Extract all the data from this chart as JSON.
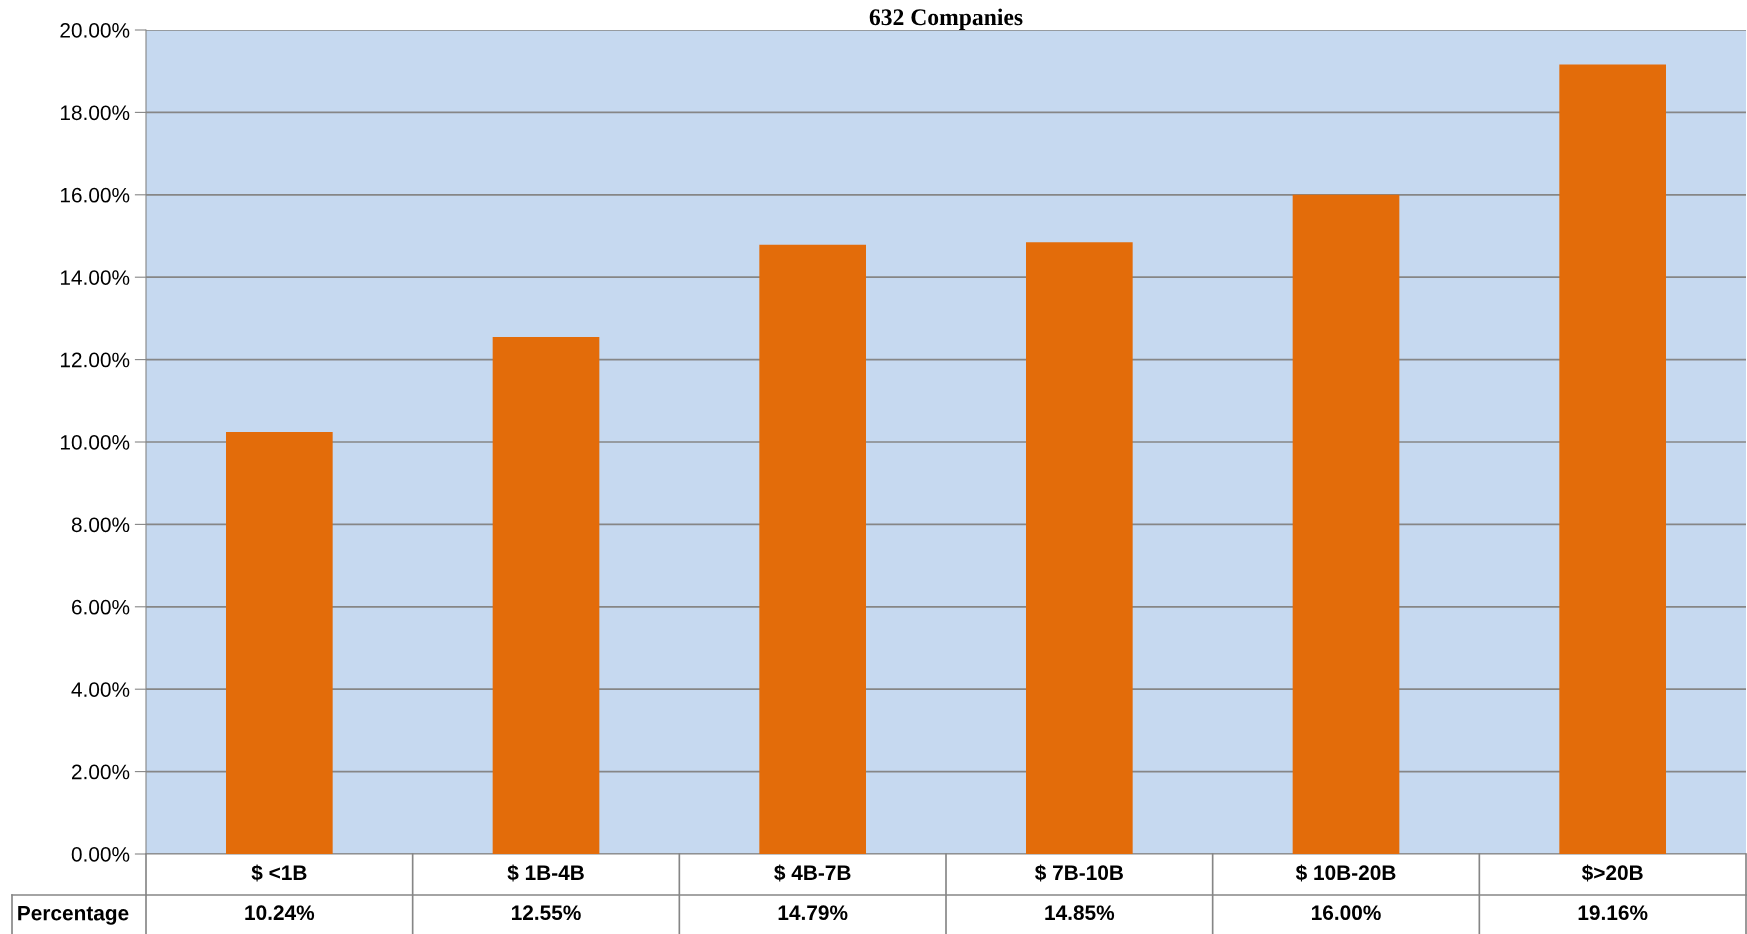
{
  "chart_data": {
    "type": "bar",
    "title": "632 Companies",
    "categories": [
      "$ <1B",
      "$ 1B-4B",
      "$ 4B-7B",
      "$ 7B-10B",
      "$ 10B-20B",
      "$>20B"
    ],
    "values": [
      10.24,
      12.55,
      14.79,
      14.85,
      16.0,
      19.16
    ],
    "value_labels": [
      "10.24%",
      "12.55%",
      "14.79%",
      "14.85%",
      "16.00%",
      "19.16%"
    ],
    "color": "#e36c0a",
    "ylim": [
      0,
      20
    ],
    "yticks": [
      {
        "value": 0,
        "label": "0.00%"
      },
      {
        "value": 2,
        "label": "2.00%"
      },
      {
        "value": 4,
        "label": "4.00%"
      },
      {
        "value": 6,
        "label": "6.00%"
      },
      {
        "value": 8,
        "label": "8.00%"
      },
      {
        "value": 10,
        "label": "10.00%"
      },
      {
        "value": 12,
        "label": "12.00%"
      },
      {
        "value": 14,
        "label": "14.00%"
      },
      {
        "value": 16,
        "label": "16.00%"
      },
      {
        "value": 18,
        "label": "18.00%"
      },
      {
        "value": 20,
        "label": "20.00%"
      }
    ],
    "grid": "y",
    "annotations": [
      "Percentage"
    ]
  }
}
